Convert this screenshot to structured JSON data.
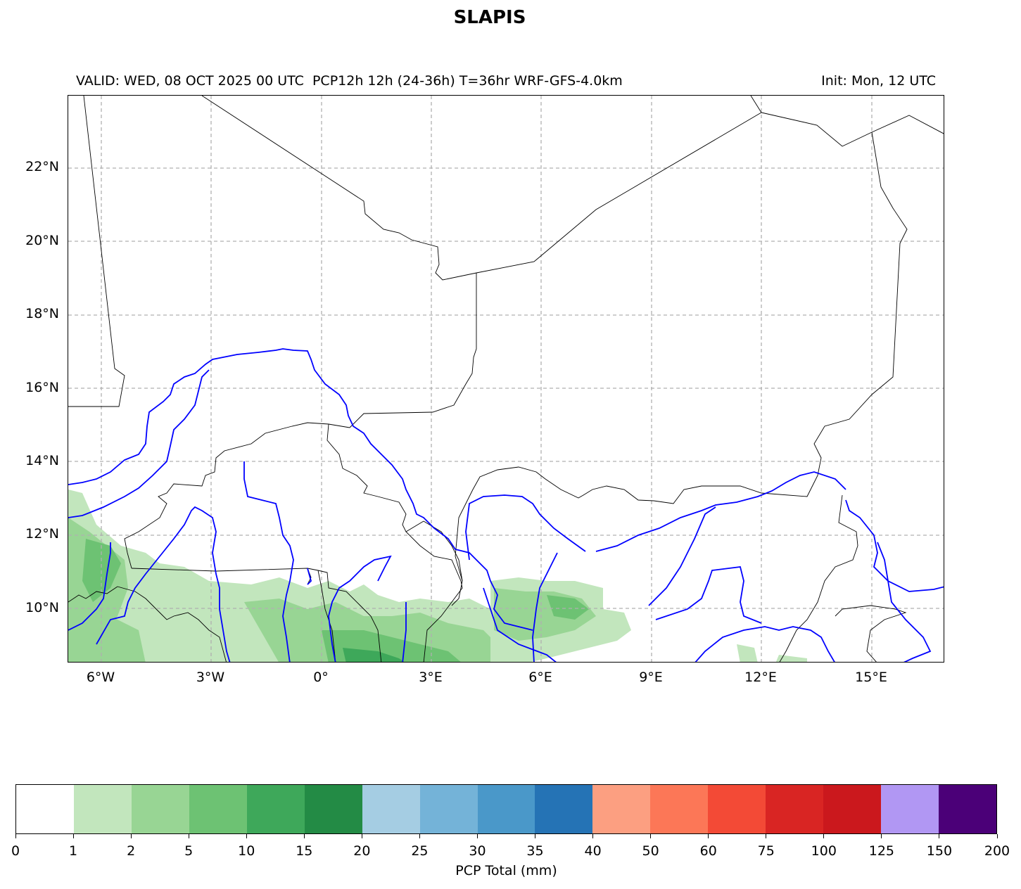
{
  "title": "SLAPIS",
  "subtitle_left": "VALID: WED, 08 OCT 2025 00 UTC  PCP12h 12h (24-36h) T=36hr WRF-GFS-4.0km",
  "subtitle_right": "Init: Mon, 12 UTC",
  "map": {
    "lat_labels": [
      "22°N",
      "20°N",
      "18°N",
      "16°N",
      "14°N",
      "12°N",
      "10°N"
    ],
    "lon_labels": [
      "6°W",
      "3°W",
      "0°",
      "3°E",
      "6°E",
      "9°E",
      "12°E",
      "15°E"
    ],
    "lon_range": [
      -6.9,
      17
    ],
    "lat_range": [
      8.5,
      24
    ],
    "grid": true,
    "river_color": "#0000ff",
    "border_color": "#000000"
  },
  "colorbar": {
    "label": "PCP Total (mm)",
    "ticks": [
      "0",
      "1",
      "2",
      "5",
      "10",
      "15",
      "20",
      "25",
      "30",
      "35",
      "40",
      "50",
      "60",
      "75",
      "100",
      "125",
      "150",
      "200"
    ],
    "colors": [
      "#ffffff",
      "#c2e6bd",
      "#98d594",
      "#6dc273",
      "#3ea85a",
      "#238b45",
      "#a5cde3",
      "#74b3d8",
      "#4a98c9",
      "#2573b5",
      "#fc9f81",
      "#fc7757",
      "#f34a36",
      "#d92523",
      "#cb181d",
      "#b197f3",
      "#4b0078"
    ]
  }
}
